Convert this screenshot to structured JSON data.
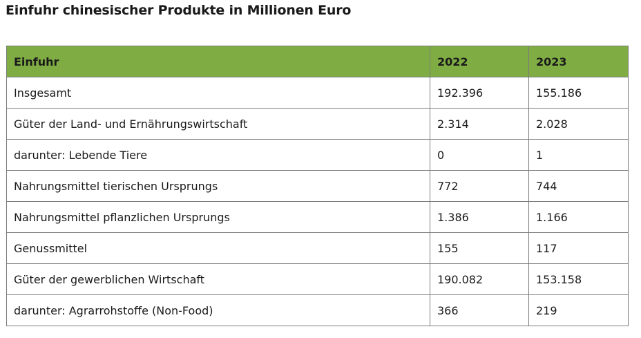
{
  "title": "Einfuhr chinesischer Produkte in Millionen Euro",
  "colors": {
    "header_bg": "#7fad44",
    "border": "#7a7a7a"
  },
  "table": {
    "headers": [
      "Einfuhr",
      "2022",
      "2023"
    ],
    "rows": [
      [
        "Insgesamt",
        "192.396",
        "155.186"
      ],
      [
        "Güter der Land- und Ernährungswirtschaft",
        "2.314",
        "2.028"
      ],
      [
        "darunter: Lebende Tiere",
        "0",
        "1"
      ],
      [
        "Nahrungsmittel tierischen Ursprungs",
        "772",
        "744"
      ],
      [
        "Nahrungsmittel pflanzlichen Ursprungs",
        "1.386",
        "1.166"
      ],
      [
        "Genussmittel",
        "155",
        "117"
      ],
      [
        "Güter der gewerblichen Wirtschaft",
        "190.082",
        "153.158"
      ],
      [
        "darunter: Agrarrohstoffe (Non-Food)",
        "366",
        "219"
      ]
    ]
  }
}
